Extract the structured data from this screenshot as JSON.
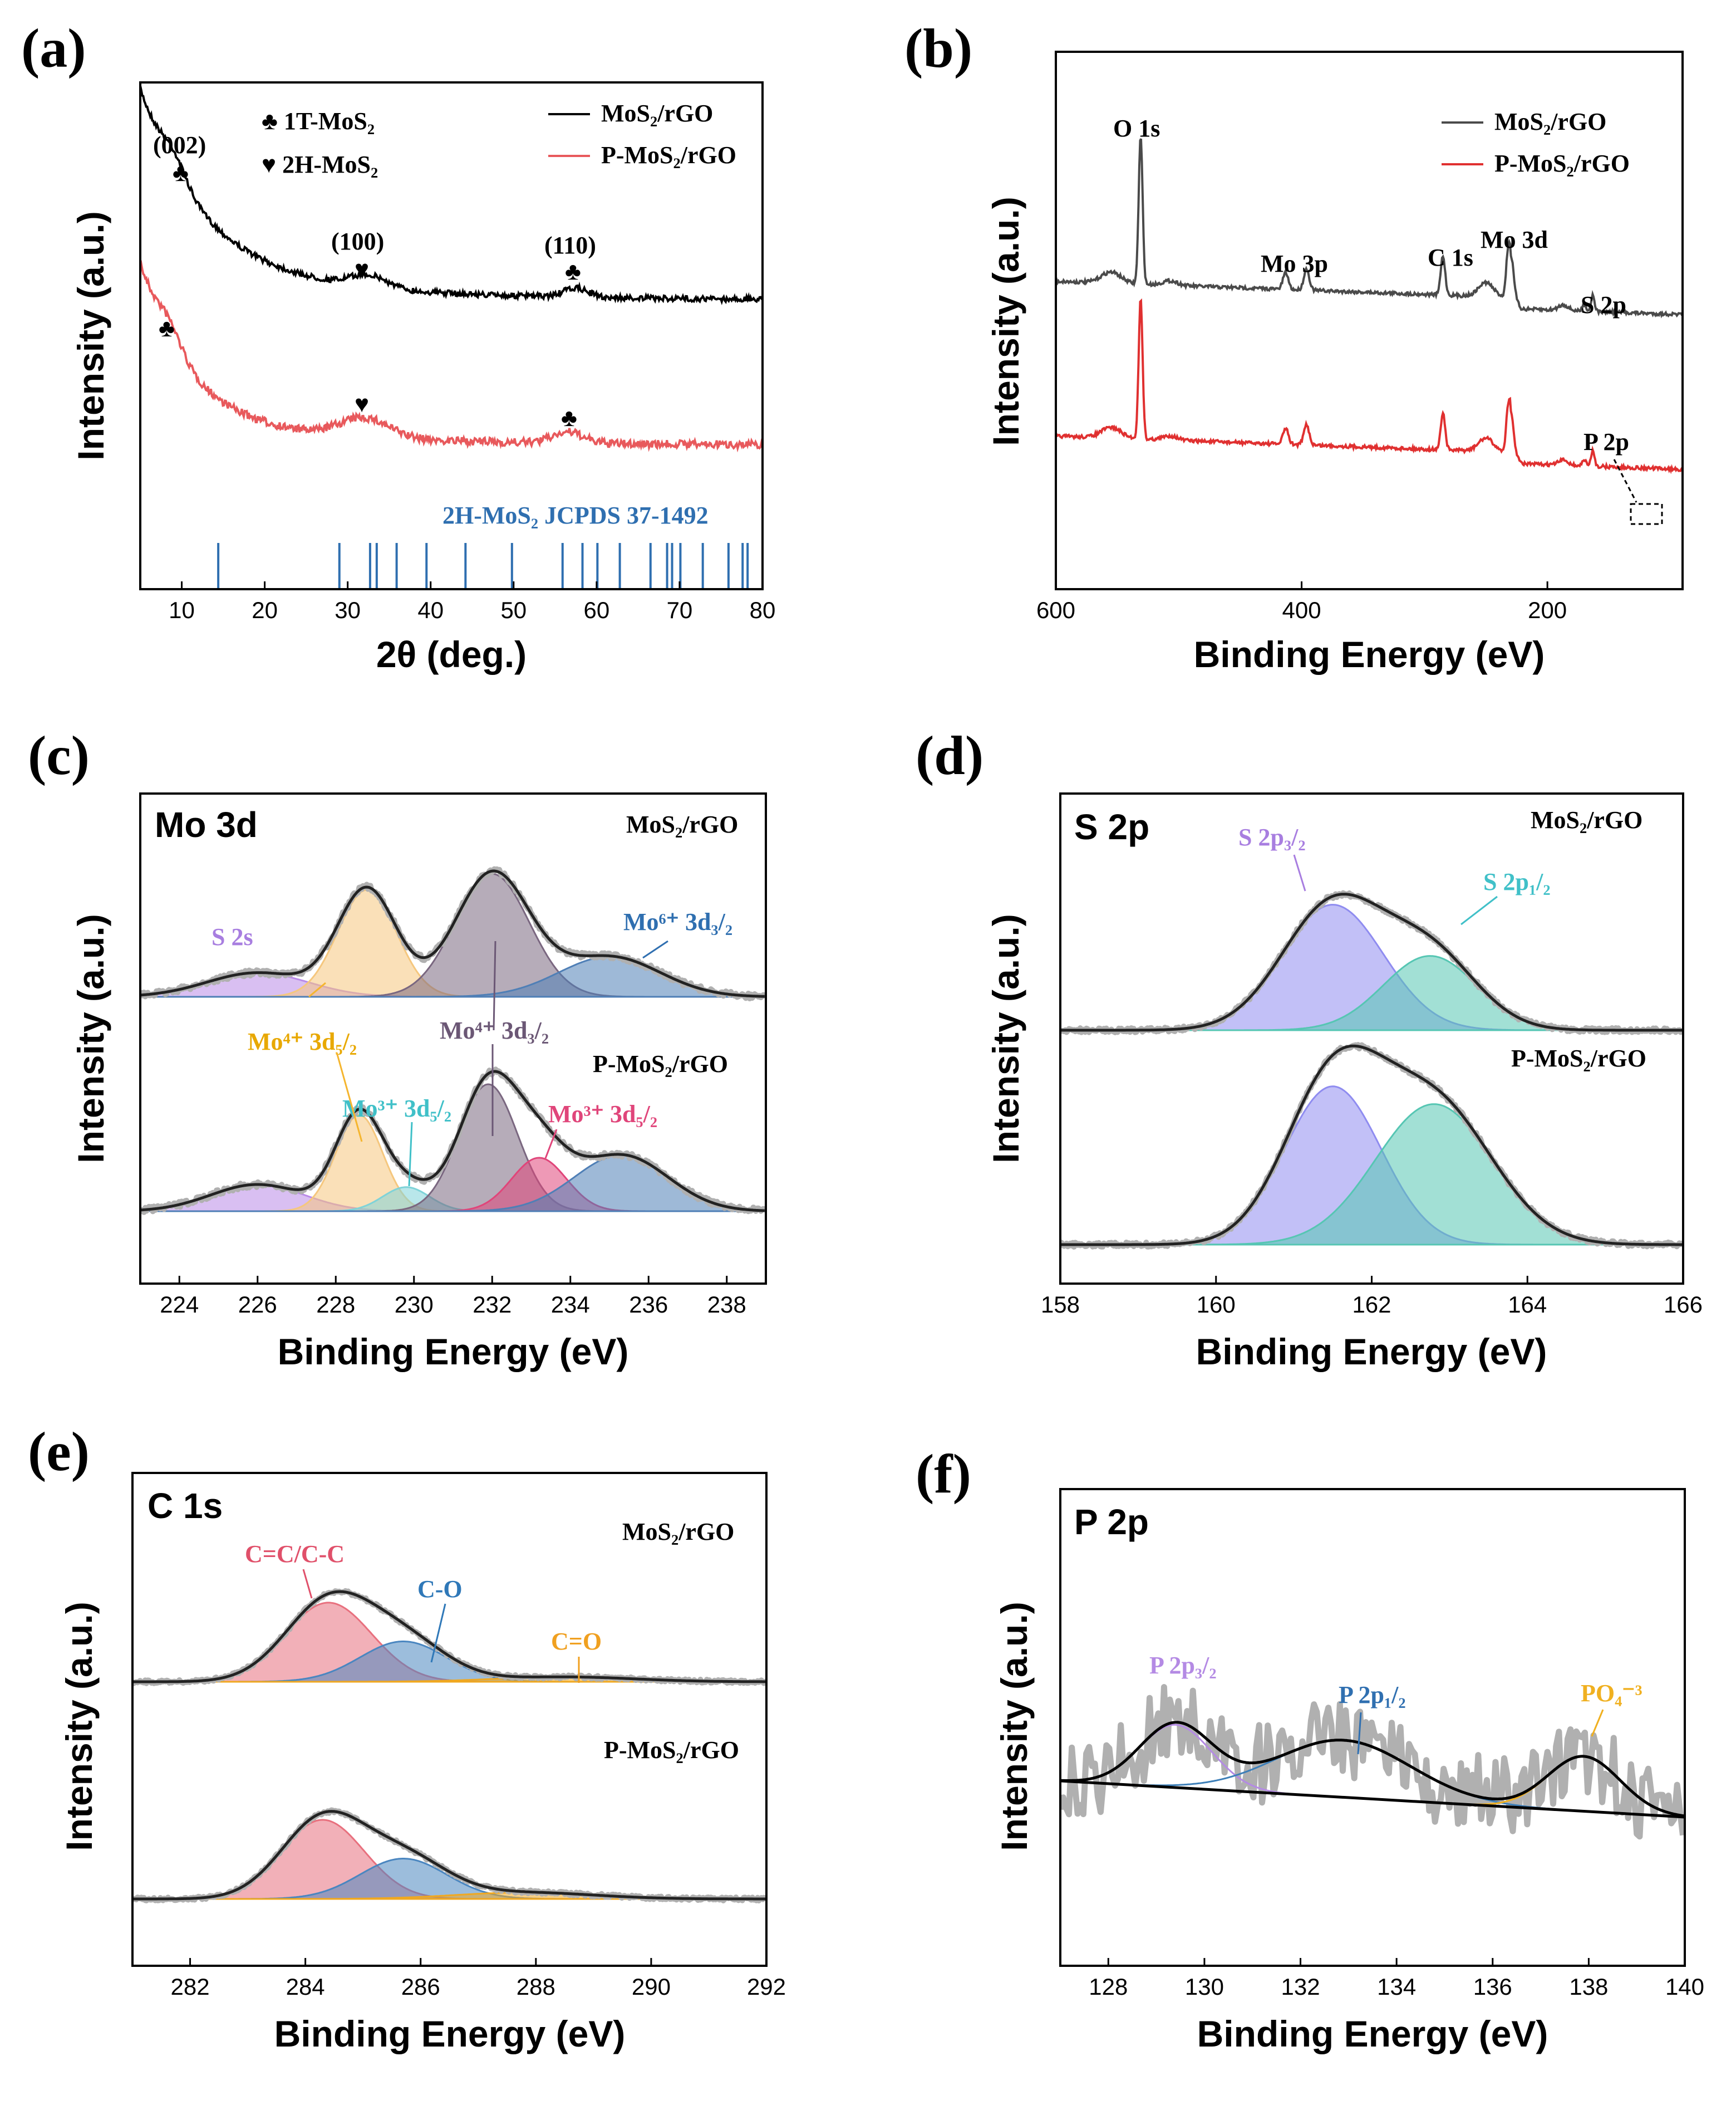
{
  "colors": {
    "black": "#000000",
    "red_xrd": "#e8595c",
    "ref_blue": "#2f6fb0",
    "xps_gray": "#4a4a4a",
    "xps_red": "#e03030",
    "raw": "#b0b0b0",
    "envelope": "#222222",
    "purple": "#b98ae8",
    "orange": "#f5c77e",
    "mauve": "#7a6780",
    "blue": "#4f7fb6",
    "cyan": "#7fd3d8",
    "pink": "#e0457a",
    "violet": "#8f8cf0",
    "teal": "#56c6b3",
    "red_c": "#e8707e",
    "blue_c": "#4a86c0",
    "yellow_c": "#f0a820",
    "p_purple": "#b48ae4",
    "p_blue": "#3d7fb8",
    "p_orange": "#f0b020"
  },
  "panels": {
    "a": {
      "label": "(a)",
      "inset": ""
    },
    "b": {
      "label": "(b)",
      "inset": ""
    },
    "c": {
      "label": "(c)",
      "inset": "Mo 3d"
    },
    "d": {
      "label": "(d)",
      "inset": "S 2p"
    },
    "e": {
      "label": "(e)",
      "inset": "C 1s"
    },
    "f": {
      "label": "(f)",
      "inset": "P 2p"
    }
  },
  "chart_data": [
    {
      "id": "a",
      "type": "line",
      "xlabel": "2θ (deg.)",
      "ylabel": "Intensity (a.u.)",
      "xlim": [
        5,
        80
      ],
      "xticks": [
        10,
        20,
        30,
        40,
        50,
        60,
        70,
        80
      ],
      "series": [
        {
          "name": "MoS2/rGO",
          "label": "MoS₂/rGO",
          "color": "#000000"
        },
        {
          "name": "P-MoS2/rGO",
          "label": "P-MoS₂/rGO",
          "color": "#e8595c"
        }
      ],
      "phase_legend": [
        "♣ 1T-MoS₂",
        "♥ 2H-MoS₂"
      ],
      "peak_labels": [
        "(002)",
        "(100)",
        "(110)"
      ],
      "reference": {
        "label": "2H-MoS₂  JCPDS 37-1492",
        "lines": [
          14.4,
          29.0,
          32.7,
          33.5,
          35.9,
          39.5,
          44.2,
          49.8,
          55.9,
          58.3,
          60.1,
          62.8,
          66.5,
          68.5,
          69.1,
          70.1,
          72.8,
          75.9,
          77.6,
          78.2
        ]
      }
    },
    {
      "id": "b",
      "type": "line",
      "xlabel": "Binding Energy (eV)",
      "ylabel": "Intensity (a.u.)",
      "xlim": [
        600,
        90
      ],
      "xticks": [
        600,
        400,
        200
      ],
      "series": [
        {
          "name": "MoS2/rGO",
          "label": "MoS₂/rGO",
          "color": "#4a4a4a"
        },
        {
          "name": "P-MoS2/rGO",
          "label": "P-MoS₂/rGO",
          "color": "#e03030"
        }
      ],
      "peak_labels": [
        "O 1s",
        "Mo 3p",
        "C 1s",
        "Mo 3d",
        "S 2p",
        "P 2p"
      ]
    },
    {
      "id": "c",
      "type": "line",
      "xlabel": "Binding Energy (eV)",
      "ylabel": "Intensity (a.u.)",
      "xlim": [
        223,
        239
      ],
      "xticks": [
        224,
        226,
        228,
        230,
        232,
        234,
        236,
        238
      ],
      "sample_labels": [
        "MoS₂/rGO",
        "P-MoS₂/rGO"
      ],
      "component_labels": [
        "S 2s",
        "Mo⁶⁺ 3d₃/₂",
        "Mo⁴⁺ 3d₅/₂",
        "Mo⁴⁺ 3d₃/₂",
        "Mo³⁺ 3d₅/₂",
        "Mo³⁺ 3d₅/₂"
      ],
      "top_peaks": [
        {
          "c": 226.0,
          "a": 0.18,
          "w": 1.3
        },
        {
          "c": 228.8,
          "a": 0.8,
          "w": 0.75
        },
        {
          "c": 232.0,
          "a": 0.92,
          "w": 0.95
        },
        {
          "c": 235.0,
          "a": 0.3,
          "w": 1.3
        }
      ],
      "bottom_peaks": [
        {
          "c": 226.0,
          "a": 0.2,
          "w": 1.2
        },
        {
          "c": 228.6,
          "a": 0.72,
          "w": 0.6
        },
        {
          "c": 229.8,
          "a": 0.18,
          "w": 0.6
        },
        {
          "c": 231.9,
          "a": 0.95,
          "w": 0.75
        },
        {
          "c": 233.2,
          "a": 0.4,
          "w": 0.7
        },
        {
          "c": 235.3,
          "a": 0.42,
          "w": 1.2
        }
      ]
    },
    {
      "id": "d",
      "type": "line",
      "xlabel": "Binding Energy (eV)",
      "ylabel": "Intensity (a.u.)",
      "xlim": [
        158,
        166
      ],
      "xticks": [
        158,
        160,
        162,
        164,
        166
      ],
      "sample_labels": [
        "MoS₂/rGO",
        "P-MoS₂/rGO"
      ],
      "component_labels": [
        "S 2p₃/₂",
        "S 2p₁/₂"
      ],
      "top_peaks": [
        {
          "c": 161.5,
          "a": 0.98,
          "w": 0.65
        },
        {
          "c": 162.75,
          "a": 0.58,
          "w": 0.6
        }
      ],
      "bottom_peaks": [
        {
          "c": 161.5,
          "a": 0.98,
          "w": 0.62
        },
        {
          "c": 162.8,
          "a": 0.87,
          "w": 0.75
        }
      ]
    },
    {
      "id": "e",
      "type": "line",
      "xlabel": "Binding Energy (eV)",
      "ylabel": "Intensity (a.u.)",
      "xlim": [
        281,
        292
      ],
      "xticks": [
        282,
        284,
        286,
        288,
        290,
        292
      ],
      "sample_labels": [
        "MoS₂/rGO",
        "P-MoS₂/rGO"
      ],
      "component_labels": [
        "C=C/C-C",
        "C-O",
        "C=O"
      ],
      "top_peaks": [
        {
          "c": 284.4,
          "a": 0.98,
          "w": 0.75
        },
        {
          "c": 285.7,
          "a": 0.5,
          "w": 0.75
        },
        {
          "c": 288.5,
          "a": 0.06,
          "w": 1.2
        }
      ],
      "bottom_peaks": [
        {
          "c": 284.3,
          "a": 0.98,
          "w": 0.72
        },
        {
          "c": 285.7,
          "a": 0.5,
          "w": 0.75
        },
        {
          "c": 287.8,
          "a": 0.08,
          "w": 1.2
        }
      ]
    },
    {
      "id": "f",
      "type": "line",
      "xlabel": "Binding Energy (eV)",
      "ylabel": "Intensity (a.u.)",
      "xlim": [
        127,
        140
      ],
      "xticks": [
        128,
        130,
        132,
        134,
        136,
        138,
        140
      ],
      "component_labels": [
        "P 2p₃/₂",
        "P 2p₁/₂",
        "PO₄⁻³"
      ],
      "peaks": [
        {
          "c": 129.4,
          "a": 0.55,
          "w": 0.75
        },
        {
          "c": 132.9,
          "a": 0.5,
          "w": 1.4
        },
        {
          "c": 137.9,
          "a": 0.48,
          "w": 0.75
        }
      ]
    }
  ]
}
